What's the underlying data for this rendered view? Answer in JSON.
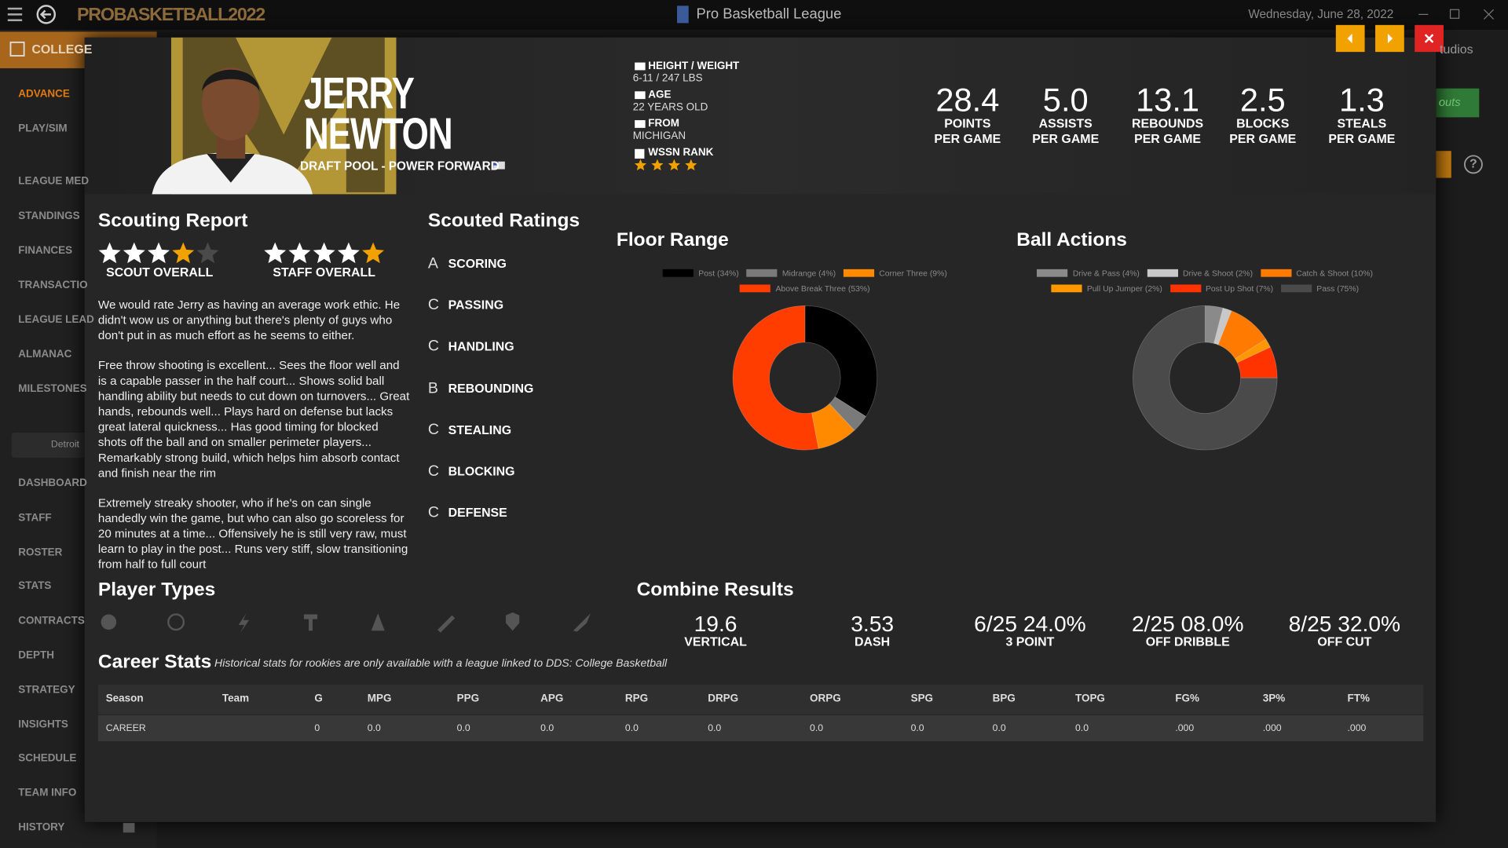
{
  "window": {
    "logo": "PROBASKETBALL2022",
    "title": "Pro Basketball League",
    "date": "Wednesday, June 28, 2022"
  },
  "sidebar": {
    "tab": "COLLEGE",
    "items": [
      "ADVANCE",
      "PLAY/SIM",
      "LEAGUE MED",
      "STANDINGS",
      "FINANCES",
      "TRANSACTIO",
      "LEAGUE LEAD",
      "ALMANAC",
      "MILESTONES"
    ],
    "team": "Detroit",
    "team_items": [
      "DASHBOARD",
      "STAFF",
      "ROSTER",
      "STATS",
      "CONTRACTS",
      "DEPTH",
      "STRATEGY",
      "INSIGHTS",
      "SCHEDULE",
      "TEAM INFO",
      "HISTORY"
    ]
  },
  "background": {
    "studio": "tudios",
    "button": "outs",
    "help": "?"
  },
  "player": {
    "first_name": "JERRY",
    "last_name": "NEWTON",
    "position": "DRAFT POOL - POWER FORWARD",
    "info": [
      {
        "label": "HEIGHT / WEIGHT",
        "value": "6-11 / 247 LBS"
      },
      {
        "label": "AGE",
        "value": "22 YEARS OLD"
      },
      {
        "label": "FROM",
        "value": "MICHIGAN"
      }
    ],
    "rank": {
      "label": "WSSN RANK",
      "stars": 4
    },
    "stats": [
      {
        "value": "28.4",
        "label": "POINTS",
        "unit": "PER GAME"
      },
      {
        "value": "5.0",
        "label": "ASSISTS",
        "unit": "PER GAME"
      },
      {
        "value": "13.1",
        "label": "REBOUNDS",
        "unit": "PER GAME"
      },
      {
        "value": "2.5",
        "label": "BLOCKS",
        "unit": "PER GAME"
      },
      {
        "value": "1.3",
        "label": "STEALS",
        "unit": "PER GAME"
      }
    ]
  },
  "scouting": {
    "title": "Scouting Report",
    "stars_max": 5,
    "overall": [
      {
        "label": "SCOUT OVERALL",
        "stars": 4
      },
      {
        "label": "STAFF OVERALL",
        "stars": 5
      }
    ],
    "paragraphs": [
      "We would rate Jerry as having an average work ethic. He didn't wow us or anything but there's plenty of guys who don't put in as much effort as he seems to either.",
      "Free throw shooting is excellent... Sees the floor well and is a capable passer in the half court... Shows solid ball handling ability but needs to cut down on turnovers... Great hands, rebounds well... Plays hard on defense but lacks great lateral quickness... Has good timing for blocked shots off the ball and on smaller perimeter players... Remarkably strong build, which helps him absorb contact and finish near the rim",
      "Extremely streaky shooter, who if he's on can single handedly win the game, but who can also go scoreless for 20 minutes at a time... Offensively he is still very raw, must learn to play in the post... Runs very stiff, slow transitioning from half to full court"
    ]
  },
  "ratings": {
    "title": "Scouted Ratings",
    "items": [
      {
        "grade": "A",
        "name": "SCORING"
      },
      {
        "grade": "C",
        "name": "PASSING"
      },
      {
        "grade": "C",
        "name": "HANDLING"
      },
      {
        "grade": "B",
        "name": "REBOUNDING"
      },
      {
        "grade": "C",
        "name": "STEALING"
      },
      {
        "grade": "C",
        "name": "BLOCKING"
      },
      {
        "grade": "C",
        "name": "DEFENSE"
      }
    ]
  },
  "chart_data": [
    {
      "type": "pie",
      "title": "Floor Range",
      "donut": true,
      "categories": [
        "Post (34%)",
        "Midrange (4%)",
        "Corner Three (9%)",
        "Above Break Three (53%)"
      ],
      "values": [
        34,
        4,
        9,
        53
      ],
      "colors": [
        "#000000",
        "#7a7a7a",
        "#ff8a00",
        "#ff3d00"
      ]
    },
    {
      "type": "pie",
      "title": "Ball Actions",
      "donut": true,
      "categories": [
        "Drive & Pass (4%)",
        "Drive & Shoot (2%)",
        "Catch & Shoot (10%)",
        "Pull Up Jumper (2%)",
        "Post Up Shot (7%)",
        "Pass (75%)"
      ],
      "values": [
        4,
        2,
        10,
        2,
        7,
        75
      ],
      "colors": [
        "#8a8a8a",
        "#c8c8c8",
        "#ff7a00",
        "#ff9800",
        "#ff3300",
        "#4a4a4a"
      ]
    }
  ],
  "player_types": {
    "title": "Player Types"
  },
  "combine": {
    "title": "Combine Results",
    "items": [
      {
        "value": "19.6",
        "label": "VERTICAL"
      },
      {
        "value": "3.53",
        "label": "DASH"
      },
      {
        "value": "6/25 24.0%",
        "label": "3 POINT"
      },
      {
        "value": "2/25 08.0%",
        "label": "OFF DRIBBLE"
      },
      {
        "value": "8/25 32.0%",
        "label": "OFF CUT"
      }
    ]
  },
  "career": {
    "title": "Career Stats",
    "note": "Historical stats for rookies are only available with a league linked to DDS: College Basketball",
    "columns": [
      "Season",
      "Team",
      "G",
      "MPG",
      "PPG",
      "APG",
      "RPG",
      "DRPG",
      "ORPG",
      "SPG",
      "BPG",
      "TOPG",
      "FG%",
      "3P%",
      "FT%"
    ],
    "rows": [
      [
        "CAREER",
        null,
        "0",
        "0.0",
        "0.0",
        "0.0",
        "0.0",
        "0.0",
        "0.0",
        "0.0",
        "0.0",
        "0.0",
        ".000",
        ".000",
        ".000"
      ]
    ]
  }
}
